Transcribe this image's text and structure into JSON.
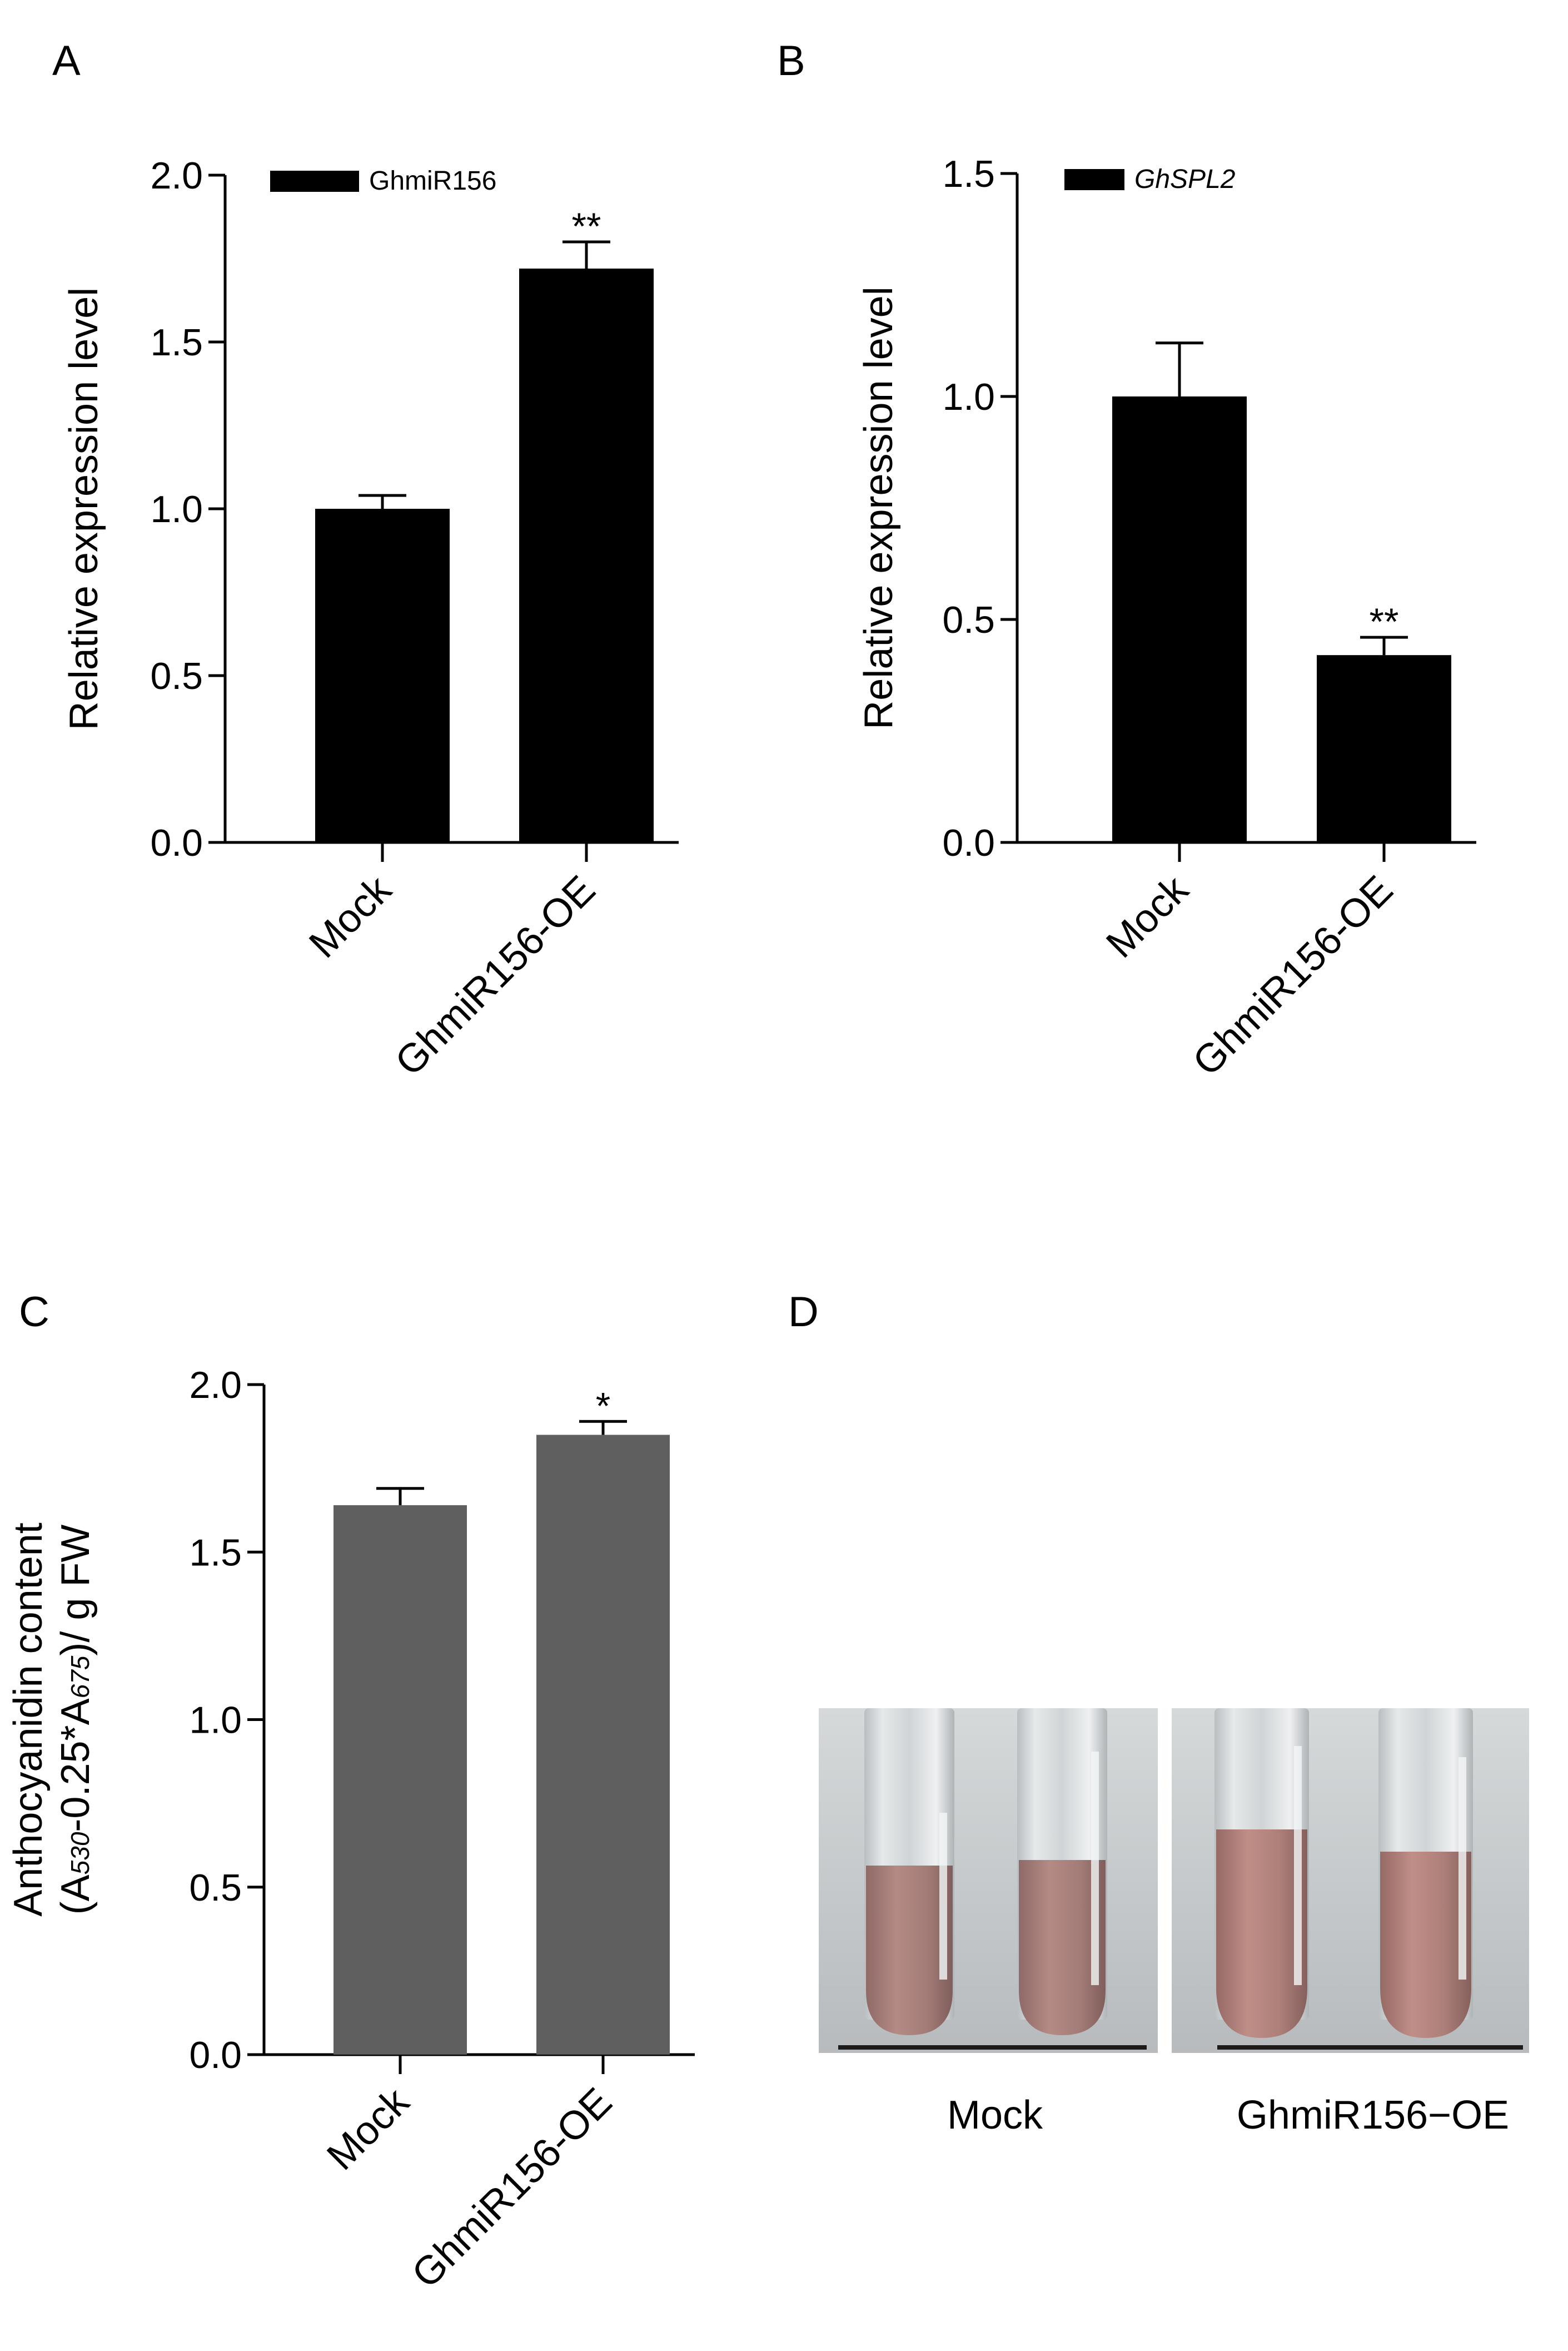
{
  "chart_data": [
    {
      "panel": "A",
      "type": "bar",
      "categories": [
        "Mock",
        "GhmiR156-OE"
      ],
      "series": [
        {
          "name": "GhmiR156",
          "values": [
            1.0,
            1.72
          ],
          "errors": [
            0.04,
            0.08
          ],
          "color": "#000000"
        }
      ],
      "significance": [
        "",
        "**"
      ],
      "ylabel": "Relative expression level",
      "ylim": [
        0,
        2.0
      ],
      "yticks": [
        "0.0",
        "0.5",
        "1.0",
        "1.5",
        "2.0"
      ],
      "legend": "top-left",
      "legend_italic": false,
      "grid": false
    },
    {
      "panel": "B",
      "type": "bar",
      "categories": [
        "Mock",
        "GhmiR156-OE"
      ],
      "series": [
        {
          "name": "GhSPL2",
          "values": [
            1.0,
            0.42
          ],
          "errors": [
            0.12,
            0.04
          ],
          "color": "#000000"
        }
      ],
      "significance": [
        "",
        "**"
      ],
      "ylabel": "Relative expression level",
      "ylim": [
        0,
        1.5
      ],
      "yticks": [
        "0.0",
        "0.5",
        "1.0",
        "1.5"
      ],
      "legend": "top-left",
      "legend_italic": true,
      "grid": false
    },
    {
      "panel": "C",
      "type": "bar",
      "categories": [
        "Mock",
        "GhmiR156-OE"
      ],
      "series": [
        {
          "values": [
            1.64,
            1.85
          ],
          "errors": [
            0.05,
            0.04
          ],
          "color": "#5f5f5f"
        }
      ],
      "significance": [
        "",
        "*"
      ],
      "ylabel": "Anthocyanidin content",
      "ylabel2": {
        "a": "(A",
        "s1": "530",
        "b": "-0.25*A",
        "s2": "675",
        "c": ")/ g FW"
      },
      "ylim": [
        0,
        2.0
      ],
      "yticks": [
        "0.0",
        "0.5",
        "1.0",
        "1.5",
        "2.0"
      ],
      "grid": false
    }
  ],
  "panels": {
    "A": "A",
    "B": "B",
    "C": "C",
    "D": "D"
  },
  "photo": {
    "captions": [
      "Mock",
      "GhmiR156−OE"
    ],
    "colors": {
      "tube_liquid": "#a8807c",
      "background": "#c9cdcf",
      "glass": "#dfe3e5"
    }
  }
}
